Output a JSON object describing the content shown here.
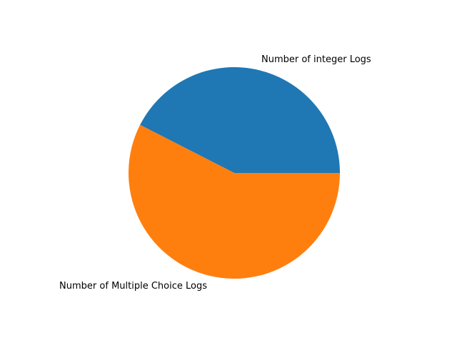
{
  "chart_data": {
    "type": "pie",
    "labels": [
      "Number of integer Logs",
      "Number of Multiple Choice Logs"
    ],
    "values": [
      42.5,
      57.5
    ],
    "colors": [
      "#1f77b4",
      "#ff7f0e"
    ],
    "start_angle_deg": 0,
    "direction": "counterclockwise",
    "legend": "none"
  }
}
